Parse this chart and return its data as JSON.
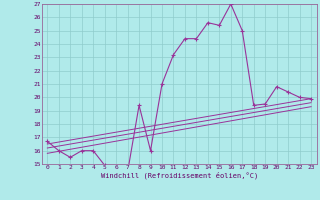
{
  "title": "",
  "xlabel": "Windchill (Refroidissement éolien,°C)",
  "background_color": "#b0eaea",
  "grid_color": "#90cccc",
  "line_color": "#993399",
  "xlim": [
    -0.5,
    23.5
  ],
  "ylim": [
    15,
    27
  ],
  "yticks": [
    15,
    16,
    17,
    18,
    19,
    20,
    21,
    22,
    23,
    24,
    25,
    26,
    27
  ],
  "xticks": [
    0,
    1,
    2,
    3,
    4,
    5,
    6,
    7,
    8,
    9,
    10,
    11,
    12,
    13,
    14,
    15,
    16,
    17,
    18,
    19,
    20,
    21,
    22,
    23
  ],
  "series1_x": [
    0,
    1,
    2,
    3,
    4,
    5,
    6,
    7,
    8,
    9,
    10,
    11,
    12,
    13,
    14,
    15,
    16,
    17,
    18,
    19,
    20,
    21,
    22,
    23
  ],
  "series1_y": [
    16.7,
    16.0,
    15.5,
    16.0,
    16.0,
    14.9,
    14.4,
    14.4,
    19.4,
    16.0,
    21.0,
    23.2,
    24.4,
    24.4,
    25.6,
    25.4,
    27.0,
    25.0,
    19.4,
    19.5,
    20.8,
    20.4,
    20.0,
    19.9
  ],
  "series2_x": [
    0,
    23
  ],
  "series2_y": [
    16.5,
    19.9
  ],
  "series3_x": [
    0,
    23
  ],
  "series3_y": [
    16.2,
    19.6
  ],
  "series4_x": [
    0,
    23
  ],
  "series4_y": [
    15.8,
    19.3
  ]
}
